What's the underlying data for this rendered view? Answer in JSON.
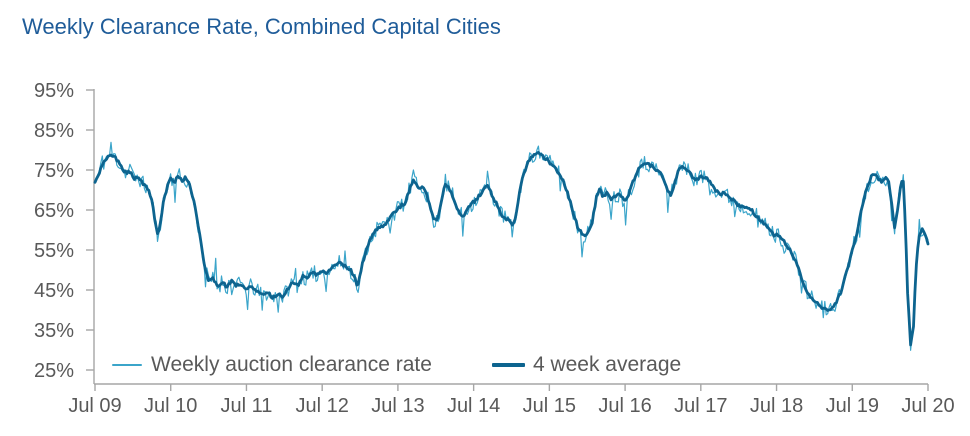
{
  "colors": {
    "title": "#1F5C99",
    "axis": "#A6A6A6",
    "tick_label": "#595959",
    "weekly_line": "#3BA5CA",
    "avg_line": "#0D648F",
    "background": "#FFFFFF"
  },
  "chart_data": {
    "type": "line",
    "title": "Weekly Clearance Rate, Combined Capital Cities",
    "grid": false,
    "x_axis": {
      "tick_labels": [
        "Jul 09",
        "Jul 10",
        "Jul 11",
        "Jul 12",
        "Jul 13",
        "Jul 14",
        "Jul 15",
        "Jul 16",
        "Jul 17",
        "Jul 18",
        "Jul 19",
        "Jul 20"
      ],
      "years": 11
    },
    "y_axis": {
      "tick_labels": [
        "95%",
        "85%",
        "75%",
        "65%",
        "55%",
        "45%",
        "35%",
        "25%"
      ],
      "min": 25,
      "max": 95,
      "tick_step": 10,
      "unit": "%"
    },
    "legend": {
      "position": "bottom-inside",
      "entries": [
        {
          "label": "Weekly auction clearance rate",
          "style": "thin"
        },
        {
          "label": "4 week average",
          "style": "thick"
        }
      ]
    },
    "series": [
      {
        "name": "4 week average",
        "jitter": 0.4,
        "points": [
          [
            0,
            72
          ],
          [
            0.04,
            73.5
          ],
          [
            0.08,
            75.5
          ],
          [
            0.13,
            77.5
          ],
          [
            0.18,
            78.6
          ],
          [
            0.22,
            78.8
          ],
          [
            0.27,
            78.2
          ],
          [
            0.32,
            76.5
          ],
          [
            0.37,
            75
          ],
          [
            0.42,
            74.3
          ],
          [
            0.47,
            74.6
          ],
          [
            0.52,
            72.8
          ],
          [
            0.57,
            73.4
          ],
          [
            0.62,
            71.8
          ],
          [
            0.67,
            70.8
          ],
          [
            0.72,
            69.3
          ],
          [
            0.76,
            66.5
          ],
          [
            0.8,
            61.5
          ],
          [
            0.83,
            58.4
          ],
          [
            0.86,
            61.5
          ],
          [
            0.9,
            66.5
          ],
          [
            0.95,
            70.5
          ],
          [
            1,
            73.2
          ],
          [
            1.05,
            72
          ],
          [
            1.1,
            73.8
          ],
          [
            1.15,
            72.2
          ],
          [
            1.2,
            73.2
          ],
          [
            1.25,
            71
          ],
          [
            1.3,
            67.5
          ],
          [
            1.35,
            62.5
          ],
          [
            1.4,
            56.5
          ],
          [
            1.45,
            51
          ],
          [
            1.5,
            47
          ],
          [
            1.56,
            47.8
          ],
          [
            1.62,
            45.8
          ],
          [
            1.68,
            47.2
          ],
          [
            1.74,
            45.6
          ],
          [
            1.8,
            47.4
          ],
          [
            1.86,
            46
          ],
          [
            1.93,
            46.6
          ],
          [
            2,
            45.4
          ],
          [
            2.07,
            45.9
          ],
          [
            2.14,
            44.7
          ],
          [
            2.21,
            43.6
          ],
          [
            2.28,
            44.3
          ],
          [
            2.35,
            43
          ],
          [
            2.42,
            44.1
          ],
          [
            2.48,
            43.2
          ],
          [
            2.55,
            45.4
          ],
          [
            2.62,
            47.1
          ],
          [
            2.68,
            46.2
          ],
          [
            2.74,
            48.4
          ],
          [
            2.8,
            47.7
          ],
          [
            2.87,
            49.4
          ],
          [
            2.94,
            48.7
          ],
          [
            3,
            49.8
          ],
          [
            3.06,
            49.1
          ],
          [
            3.12,
            50.4
          ],
          [
            3.18,
            51.1
          ],
          [
            3.24,
            51.9
          ],
          [
            3.31,
            50.9
          ],
          [
            3.37,
            50.2
          ],
          [
            3.43,
            47.9
          ],
          [
            3.47,
            45.9
          ],
          [
            3.53,
            51.4
          ],
          [
            3.6,
            56.1
          ],
          [
            3.67,
            59.2
          ],
          [
            3.74,
            60.7
          ],
          [
            3.82,
            61.2
          ],
          [
            3.9,
            63
          ],
          [
            3.97,
            64.8
          ],
          [
            4.03,
            65.9
          ],
          [
            4.1,
            66.9
          ],
          [
            4.15,
            70
          ],
          [
            4.2,
            72.2
          ],
          [
            4.25,
            71
          ],
          [
            4.29,
            70.4
          ],
          [
            4.33,
            71.1
          ],
          [
            4.4,
            67.5
          ],
          [
            4.47,
            63
          ],
          [
            4.52,
            62.1
          ],
          [
            4.57,
            66.5
          ],
          [
            4.62,
            72
          ],
          [
            4.67,
            70.5
          ],
          [
            4.72,
            68.7
          ],
          [
            4.77,
            66
          ],
          [
            4.82,
            64.2
          ],
          [
            4.86,
            63.4
          ],
          [
            4.91,
            65.3
          ],
          [
            4.97,
            66.5
          ],
          [
            5.03,
            67.5
          ],
          [
            5.09,
            69
          ],
          [
            5.14,
            70.5
          ],
          [
            5.18,
            71.2
          ],
          [
            5.24,
            68.9
          ],
          [
            5.31,
            66.3
          ],
          [
            5.36,
            64
          ],
          [
            5.41,
            63.2
          ],
          [
            5.46,
            62.4
          ],
          [
            5.51,
            60.9
          ],
          [
            5.56,
            63.5
          ],
          [
            5.61,
            70
          ],
          [
            5.66,
            74
          ],
          [
            5.72,
            77
          ],
          [
            5.78,
            78.5
          ],
          [
            5.84,
            79.4
          ],
          [
            5.9,
            78.6
          ],
          [
            5.96,
            77.8
          ],
          [
            6.02,
            76.5
          ],
          [
            6.08,
            75.5
          ],
          [
            6.14,
            74
          ],
          [
            6.2,
            71.5
          ],
          [
            6.26,
            68
          ],
          [
            6.32,
            64
          ],
          [
            6.38,
            60.5
          ],
          [
            6.44,
            58.7
          ],
          [
            6.5,
            58.9
          ],
          [
            6.56,
            61.5
          ],
          [
            6.62,
            68
          ],
          [
            6.67,
            70.3
          ],
          [
            6.71,
            68.2
          ],
          [
            6.76,
            69.2
          ],
          [
            6.81,
            67.6
          ],
          [
            6.87,
            68.4
          ],
          [
            6.93,
            68.9
          ],
          [
            7,
            66.9
          ],
          [
            7.06,
            69.5
          ],
          [
            7.12,
            72.8
          ],
          [
            7.18,
            75.2
          ],
          [
            7.25,
            76.8
          ],
          [
            7.32,
            76.4
          ],
          [
            7.38,
            75.6
          ],
          [
            7.44,
            74.7
          ],
          [
            7.5,
            73.2
          ],
          [
            7.56,
            69.6
          ],
          [
            7.61,
            68.9
          ],
          [
            7.66,
            72
          ],
          [
            7.71,
            75.2
          ],
          [
            7.76,
            76.1
          ],
          [
            7.82,
            75
          ],
          [
            7.87,
            73.8
          ],
          [
            7.93,
            72.6
          ],
          [
            8,
            73.4
          ],
          [
            8.06,
            73
          ],
          [
            8.12,
            72.4
          ],
          [
            8.17,
            70.7
          ],
          [
            8.24,
            68.9
          ],
          [
            8.3,
            69.4
          ],
          [
            8.37,
            68.1
          ],
          [
            8.44,
            67.2
          ],
          [
            8.5,
            66.2
          ],
          [
            8.57,
            65.4
          ],
          [
            8.63,
            65.9
          ],
          [
            8.7,
            64.3
          ],
          [
            8.76,
            62.9
          ],
          [
            8.83,
            61.8
          ],
          [
            8.9,
            60.2
          ],
          [
            8.97,
            58.6
          ],
          [
            9.03,
            58.8
          ],
          [
            9.1,
            57
          ],
          [
            9.16,
            55.5
          ],
          [
            9.22,
            53.5
          ],
          [
            9.28,
            51
          ],
          [
            9.33,
            48
          ],
          [
            9.38,
            45.5
          ],
          [
            9.44,
            43.5
          ],
          [
            9.5,
            42.2
          ],
          [
            9.56,
            41.2
          ],
          [
            9.62,
            40.4
          ],
          [
            9.68,
            40.1
          ],
          [
            9.74,
            40.7
          ],
          [
            9.79,
            41.9
          ],
          [
            9.84,
            44
          ],
          [
            9.89,
            47
          ],
          [
            9.94,
            50.5
          ],
          [
            9.99,
            54.5
          ],
          [
            10.05,
            58.5
          ],
          [
            10.1,
            63
          ],
          [
            10.15,
            67.5
          ],
          [
            10.2,
            71
          ],
          [
            10.25,
            73.2
          ],
          [
            10.3,
            74
          ],
          [
            10.35,
            72.6
          ],
          [
            10.4,
            72
          ],
          [
            10.44,
            72.9
          ],
          [
            10.48,
            72.3
          ],
          [
            10.52,
            66.5
          ],
          [
            10.56,
            60.3
          ],
          [
            10.6,
            65.5
          ],
          [
            10.64,
            71
          ],
          [
            10.67,
            73.1
          ],
          [
            10.7,
            62
          ],
          [
            10.73,
            45
          ],
          [
            10.77,
            31.2
          ],
          [
            10.81,
            36.5
          ],
          [
            10.84,
            50
          ],
          [
            10.88,
            58.5
          ],
          [
            10.92,
            60.4
          ],
          [
            10.96,
            58.9
          ],
          [
            11,
            56.8
          ]
        ]
      },
      {
        "name": "Weekly auction clearance rate",
        "derived_from": "4 week average",
        "weeks": 574,
        "noise_seed": 11,
        "noise_amp": 2.0,
        "spikes": [
          [
            0.1,
            2.2
          ],
          [
            0.22,
            1.8
          ],
          [
            0.47,
            2.2
          ],
          [
            0.83,
            -3
          ],
          [
            1.05,
            -3.5
          ],
          [
            1.2,
            -3
          ],
          [
            1.45,
            -4
          ],
          [
            1.59,
            6.5
          ],
          [
            1.8,
            -3.5
          ],
          [
            2.01,
            -6
          ],
          [
            2.21,
            -3.2
          ],
          [
            2.42,
            -3
          ],
          [
            2.64,
            3.2
          ],
          [
            2.87,
            -3
          ],
          [
            3.06,
            -2.8
          ],
          [
            3.31,
            3
          ],
          [
            3.47,
            -3.2
          ],
          [
            3.9,
            -2.5
          ],
          [
            4.2,
            3
          ],
          [
            4.47,
            -4
          ],
          [
            4.62,
            2.6
          ],
          [
            4.86,
            -4.2
          ],
          [
            5.18,
            2.6
          ],
          [
            5.51,
            -4.5
          ],
          [
            5.66,
            2.5
          ],
          [
            5.84,
            2.6
          ],
          [
            6.14,
            -2.5
          ],
          [
            6.44,
            -4.5
          ],
          [
            6.62,
            3
          ],
          [
            6.81,
            -3.5
          ],
          [
            7,
            -4
          ],
          [
            7.25,
            2.2
          ],
          [
            7.56,
            -5
          ],
          [
            7.71,
            2.4
          ],
          [
            8.12,
            -3
          ],
          [
            8.44,
            -3
          ],
          [
            8.76,
            -3.2
          ],
          [
            9.1,
            -2.8
          ],
          [
            9.33,
            -3
          ],
          [
            9.62,
            -2.2
          ],
          [
            10.09,
            -3.5
          ],
          [
            10.3,
            -3
          ],
          [
            10.52,
            -3.8
          ],
          [
            10.67,
            2
          ],
          [
            10.77,
            -2.7
          ],
          [
            10.88,
            2
          ]
        ]
      }
    ]
  }
}
